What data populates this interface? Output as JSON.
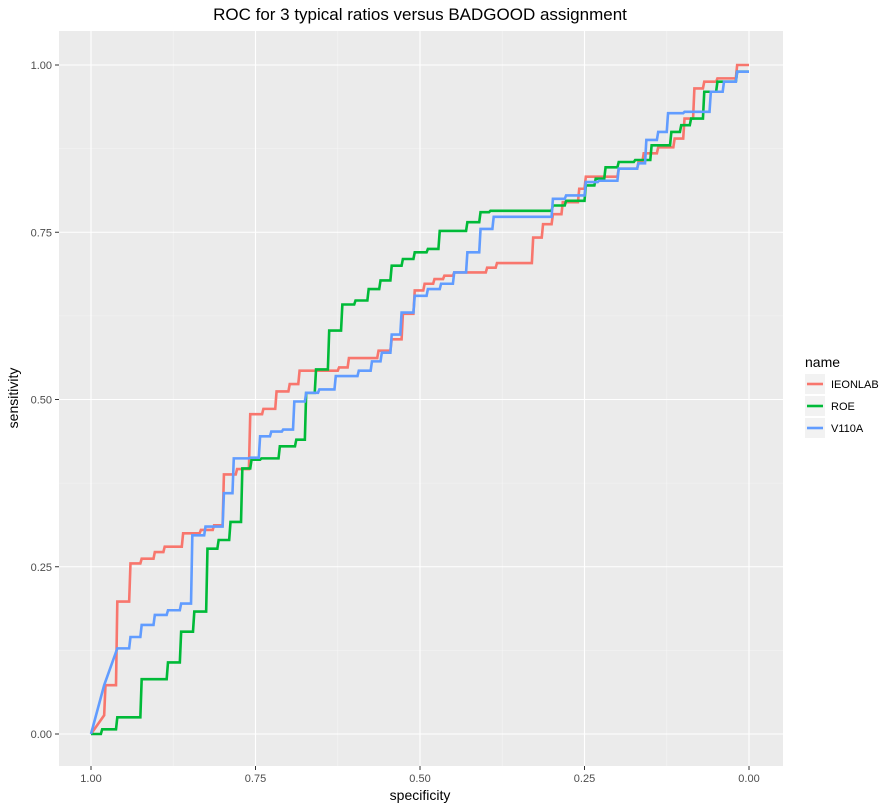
{
  "chart_data": {
    "type": "line",
    "title": "ROC for 3 typical ratios versus BADGOOD assignment",
    "xlabel": "specificity",
    "ylabel": "sensitivity",
    "xlim": [
      1.0,
      0.0
    ],
    "ylim": [
      0.0,
      1.0
    ],
    "x_reversed": true,
    "xticks": [
      1.0,
      0.75,
      0.5,
      0.25,
      0.0
    ],
    "xtick_labels": [
      "1.00",
      "0.75",
      "0.50",
      "0.25",
      "0.00"
    ],
    "yticks": [
      0.0,
      0.25,
      0.5,
      0.75,
      1.0
    ],
    "ytick_labels": [
      "0.00",
      "0.25",
      "0.50",
      "0.75",
      "1.00"
    ],
    "grid": true,
    "legend": {
      "title": "name",
      "position": "right"
    },
    "series": [
      {
        "name": "IEONLAB",
        "color": "#F8766D",
        "points": [
          [
            1.0,
            0.0
          ],
          [
            0.98,
            0.028
          ],
          [
            0.978,
            0.073
          ],
          [
            0.962,
            0.073
          ],
          [
            0.96,
            0.198
          ],
          [
            0.942,
            0.198
          ],
          [
            0.94,
            0.255
          ],
          [
            0.925,
            0.255
          ],
          [
            0.923,
            0.262
          ],
          [
            0.905,
            0.262
          ],
          [
            0.903,
            0.272
          ],
          [
            0.89,
            0.272
          ],
          [
            0.888,
            0.28
          ],
          [
            0.862,
            0.28
          ],
          [
            0.86,
            0.3
          ],
          [
            0.835,
            0.3
          ],
          [
            0.833,
            0.305
          ],
          [
            0.815,
            0.305
          ],
          [
            0.813,
            0.312
          ],
          [
            0.8,
            0.312
          ],
          [
            0.798,
            0.388
          ],
          [
            0.78,
            0.388
          ],
          [
            0.778,
            0.396
          ],
          [
            0.76,
            0.396
          ],
          [
            0.758,
            0.478
          ],
          [
            0.74,
            0.478
          ],
          [
            0.738,
            0.486
          ],
          [
            0.72,
            0.486
          ],
          [
            0.718,
            0.512
          ],
          [
            0.7,
            0.512
          ],
          [
            0.698,
            0.523
          ],
          [
            0.685,
            0.523
          ],
          [
            0.683,
            0.543
          ],
          [
            0.66,
            0.543
          ],
          [
            0.658,
            0.543
          ],
          [
            0.625,
            0.543
          ],
          [
            0.623,
            0.548
          ],
          [
            0.61,
            0.548
          ],
          [
            0.608,
            0.562
          ],
          [
            0.59,
            0.562
          ],
          [
            0.588,
            0.562
          ],
          [
            0.565,
            0.562
          ],
          [
            0.563,
            0.573
          ],
          [
            0.545,
            0.573
          ],
          [
            0.543,
            0.59
          ],
          [
            0.528,
            0.59
          ],
          [
            0.526,
            0.628
          ],
          [
            0.51,
            0.628
          ],
          [
            0.508,
            0.663
          ],
          [
            0.495,
            0.663
          ],
          [
            0.493,
            0.673
          ],
          [
            0.48,
            0.673
          ],
          [
            0.478,
            0.68
          ],
          [
            0.465,
            0.68
          ],
          [
            0.463,
            0.685
          ],
          [
            0.45,
            0.685
          ],
          [
            0.448,
            0.69
          ],
          [
            0.4,
            0.69
          ],
          [
            0.398,
            0.697
          ],
          [
            0.385,
            0.697
          ],
          [
            0.383,
            0.704
          ],
          [
            0.33,
            0.704
          ],
          [
            0.328,
            0.742
          ],
          [
            0.315,
            0.742
          ],
          [
            0.313,
            0.762
          ],
          [
            0.3,
            0.762
          ],
          [
            0.298,
            0.777
          ],
          [
            0.285,
            0.777
          ],
          [
            0.283,
            0.795
          ],
          [
            0.26,
            0.795
          ],
          [
            0.258,
            0.815
          ],
          [
            0.25,
            0.815
          ],
          [
            0.248,
            0.833
          ],
          [
            0.2,
            0.833
          ],
          [
            0.198,
            0.845
          ],
          [
            0.17,
            0.845
          ],
          [
            0.168,
            0.855
          ],
          [
            0.162,
            0.855
          ],
          [
            0.16,
            0.868
          ],
          [
            0.14,
            0.868
          ],
          [
            0.138,
            0.877
          ],
          [
            0.115,
            0.877
          ],
          [
            0.113,
            0.89
          ],
          [
            0.1,
            0.89
          ],
          [
            0.098,
            0.92
          ],
          [
            0.085,
            0.92
          ],
          [
            0.083,
            0.965
          ],
          [
            0.07,
            0.965
          ],
          [
            0.068,
            0.975
          ],
          [
            0.05,
            0.975
          ],
          [
            0.048,
            0.98
          ],
          [
            0.02,
            0.98
          ],
          [
            0.018,
            1.0
          ],
          [
            0.0,
            1.0
          ]
        ]
      },
      {
        "name": "ROE",
        "color": "#00BA38",
        "points": [
          [
            1.0,
            0.0
          ],
          [
            0.985,
            0.0
          ],
          [
            0.983,
            0.007
          ],
          [
            0.962,
            0.007
          ],
          [
            0.96,
            0.025
          ],
          [
            0.945,
            0.025
          ],
          [
            0.943,
            0.025
          ],
          [
            0.925,
            0.025
          ],
          [
            0.923,
            0.082
          ],
          [
            0.885,
            0.082
          ],
          [
            0.883,
            0.107
          ],
          [
            0.865,
            0.107
          ],
          [
            0.863,
            0.153
          ],
          [
            0.845,
            0.153
          ],
          [
            0.843,
            0.183
          ],
          [
            0.825,
            0.183
          ],
          [
            0.823,
            0.277
          ],
          [
            0.808,
            0.277
          ],
          [
            0.806,
            0.29
          ],
          [
            0.79,
            0.29
          ],
          [
            0.788,
            0.317
          ],
          [
            0.772,
            0.317
          ],
          [
            0.77,
            0.397
          ],
          [
            0.758,
            0.397
          ],
          [
            0.756,
            0.41
          ],
          [
            0.743,
            0.41
          ],
          [
            0.741,
            0.412
          ],
          [
            0.715,
            0.412
          ],
          [
            0.713,
            0.43
          ],
          [
            0.69,
            0.43
          ],
          [
            0.688,
            0.44
          ],
          [
            0.675,
            0.44
          ],
          [
            0.673,
            0.51
          ],
          [
            0.66,
            0.51
          ],
          [
            0.658,
            0.545
          ],
          [
            0.64,
            0.545
          ],
          [
            0.638,
            0.603
          ],
          [
            0.62,
            0.603
          ],
          [
            0.618,
            0.642
          ],
          [
            0.6,
            0.642
          ],
          [
            0.598,
            0.648
          ],
          [
            0.58,
            0.648
          ],
          [
            0.578,
            0.665
          ],
          [
            0.562,
            0.665
          ],
          [
            0.56,
            0.678
          ],
          [
            0.545,
            0.678
          ],
          [
            0.543,
            0.7
          ],
          [
            0.528,
            0.7
          ],
          [
            0.526,
            0.71
          ],
          [
            0.51,
            0.71
          ],
          [
            0.508,
            0.72
          ],
          [
            0.49,
            0.72
          ],
          [
            0.488,
            0.725
          ],
          [
            0.472,
            0.725
          ],
          [
            0.47,
            0.752
          ],
          [
            0.43,
            0.752
          ],
          [
            0.428,
            0.765
          ],
          [
            0.41,
            0.765
          ],
          [
            0.408,
            0.78
          ],
          [
            0.395,
            0.78
          ],
          [
            0.393,
            0.782
          ],
          [
            0.3,
            0.782
          ],
          [
            0.298,
            0.79
          ],
          [
            0.28,
            0.79
          ],
          [
            0.278,
            0.797
          ],
          [
            0.25,
            0.797
          ],
          [
            0.248,
            0.82
          ],
          [
            0.235,
            0.82
          ],
          [
            0.233,
            0.83
          ],
          [
            0.22,
            0.83
          ],
          [
            0.218,
            0.847
          ],
          [
            0.2,
            0.847
          ],
          [
            0.198,
            0.855
          ],
          [
            0.175,
            0.855
          ],
          [
            0.173,
            0.858
          ],
          [
            0.15,
            0.858
          ],
          [
            0.148,
            0.88
          ],
          [
            0.12,
            0.88
          ],
          [
            0.118,
            0.9
          ],
          [
            0.105,
            0.9
          ],
          [
            0.103,
            0.91
          ],
          [
            0.09,
            0.91
          ],
          [
            0.088,
            0.92
          ],
          [
            0.07,
            0.92
          ],
          [
            0.068,
            0.96
          ],
          [
            0.05,
            0.96
          ],
          [
            0.048,
            0.975
          ],
          [
            0.02,
            0.975
          ],
          [
            0.018,
            0.99
          ],
          [
            0.0,
            0.99
          ]
        ]
      },
      {
        "name": "V110A",
        "color": "#619CFF",
        "points": [
          [
            1.0,
            0.0
          ],
          [
            0.98,
            0.073
          ],
          [
            0.96,
            0.128
          ],
          [
            0.942,
            0.128
          ],
          [
            0.94,
            0.145
          ],
          [
            0.925,
            0.145
          ],
          [
            0.923,
            0.163
          ],
          [
            0.905,
            0.163
          ],
          [
            0.903,
            0.178
          ],
          [
            0.885,
            0.178
          ],
          [
            0.883,
            0.185
          ],
          [
            0.865,
            0.185
          ],
          [
            0.863,
            0.195
          ],
          [
            0.848,
            0.195
          ],
          [
            0.846,
            0.297
          ],
          [
            0.828,
            0.297
          ],
          [
            0.826,
            0.31
          ],
          [
            0.8,
            0.31
          ],
          [
            0.798,
            0.36
          ],
          [
            0.785,
            0.36
          ],
          [
            0.783,
            0.412
          ],
          [
            0.76,
            0.412
          ],
          [
            0.758,
            0.413
          ],
          [
            0.745,
            0.413
          ],
          [
            0.743,
            0.445
          ],
          [
            0.728,
            0.445
          ],
          [
            0.726,
            0.452
          ],
          [
            0.71,
            0.452
          ],
          [
            0.708,
            0.455
          ],
          [
            0.693,
            0.455
          ],
          [
            0.691,
            0.497
          ],
          [
            0.675,
            0.497
          ],
          [
            0.673,
            0.51
          ],
          [
            0.655,
            0.51
          ],
          [
            0.653,
            0.515
          ],
          [
            0.63,
            0.515
          ],
          [
            0.628,
            0.535
          ],
          [
            0.595,
            0.535
          ],
          [
            0.593,
            0.543
          ],
          [
            0.575,
            0.543
          ],
          [
            0.573,
            0.557
          ],
          [
            0.56,
            0.557
          ],
          [
            0.558,
            0.57
          ],
          [
            0.545,
            0.57
          ],
          [
            0.543,
            0.597
          ],
          [
            0.53,
            0.597
          ],
          [
            0.528,
            0.63
          ],
          [
            0.51,
            0.63
          ],
          [
            0.508,
            0.655
          ],
          [
            0.49,
            0.655
          ],
          [
            0.488,
            0.665
          ],
          [
            0.47,
            0.665
          ],
          [
            0.468,
            0.673
          ],
          [
            0.45,
            0.673
          ],
          [
            0.448,
            0.69
          ],
          [
            0.43,
            0.69
          ],
          [
            0.428,
            0.72
          ],
          [
            0.41,
            0.72
          ],
          [
            0.408,
            0.755
          ],
          [
            0.39,
            0.755
          ],
          [
            0.388,
            0.773
          ],
          [
            0.3,
            0.773
          ],
          [
            0.298,
            0.8
          ],
          [
            0.28,
            0.8
          ],
          [
            0.278,
            0.805
          ],
          [
            0.25,
            0.805
          ],
          [
            0.248,
            0.825
          ],
          [
            0.23,
            0.825
          ],
          [
            0.228,
            0.827
          ],
          [
            0.2,
            0.827
          ],
          [
            0.198,
            0.845
          ],
          [
            0.17,
            0.845
          ],
          [
            0.168,
            0.853
          ],
          [
            0.158,
            0.853
          ],
          [
            0.156,
            0.888
          ],
          [
            0.14,
            0.888
          ],
          [
            0.138,
            0.9
          ],
          [
            0.125,
            0.9
          ],
          [
            0.123,
            0.928
          ],
          [
            0.1,
            0.928
          ],
          [
            0.098,
            0.93
          ],
          [
            0.06,
            0.93
          ],
          [
            0.058,
            0.96
          ],
          [
            0.04,
            0.96
          ],
          [
            0.038,
            0.975
          ],
          [
            0.02,
            0.975
          ],
          [
            0.018,
            0.99
          ],
          [
            0.0,
            0.99
          ]
        ]
      }
    ]
  }
}
